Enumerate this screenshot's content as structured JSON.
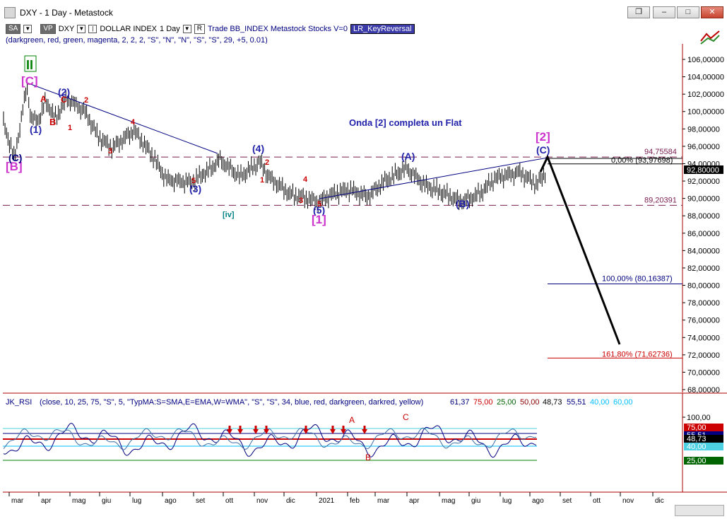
{
  "window": {
    "title": "DXY - 1 Day - Metastock"
  },
  "toolbar": {
    "sa": "SA",
    "vp": "VP",
    "symbol": "DXY",
    "name": "DOLLAR INDEX",
    "period": "1 Day",
    "r_btn": "R",
    "trade_text": "Trade  BB_INDEX  Metastock  Stocks  V=0",
    "expert": "LR_KeyReversal"
  },
  "params": "(darkgreen, red, green, magenta, 2, 2, 2, \"S\", \"N\", \"N\", \"S\", \"S\", 29, +5, 0.01)",
  "main_chart": {
    "y_ticks": [
      "106,00000",
      "104,00000",
      "102,00000",
      "100,00000",
      "98,00000",
      "96,00000",
      "94,00000",
      "92,00000",
      "90,00000",
      "88,00000",
      "86,00000",
      "84,00000",
      "82,00000",
      "80,00000",
      "78,00000",
      "76,00000",
      "74,00000",
      "72,00000",
      "70,00000",
      "68,00000"
    ],
    "current_price": "92,80000",
    "headline": "Onda [2] completa un Flat",
    "levels": [
      {
        "label": "94,75584",
        "value": 94.75584,
        "color": "#7a1d4f"
      },
      {
        "label": "0,00% (93,97698)",
        "value": 93.97698,
        "color": "#000000"
      },
      {
        "label": "89,20391",
        "value": 89.20391,
        "color": "#7a1d4f"
      },
      {
        "label": "100,00% (80,16387)",
        "value": 80.16387,
        "color": "#000080"
      },
      {
        "label": "161,80% (71,62736)",
        "value": 71.62736,
        "color": "#cc0000"
      }
    ]
  },
  "wave_labels": {
    "b_big": "[B]",
    "c_big": "[C]",
    "two_big": "[2]",
    "one_big": "[1]",
    "c_paren": "(C)",
    "one_paren": "(1)",
    "two_paren": "(2)",
    "three_paren": "(3)",
    "four_paren": "(4)",
    "five_paren": "(5)",
    "a_paren": "(A)",
    "b_paren": "(B)",
    "c_paren2": "(C)",
    "iv": "[iv]",
    "ii": "II",
    "A": "A",
    "B": "B",
    "C": "C",
    "n1": "1",
    "n2": "2",
    "n3": "3",
    "n4": "4",
    "n5": "5"
  },
  "rsi": {
    "header_name": "JK_RSI",
    "header_params": "(close, 10, 25, 75, \"S\", 5, \"TypMA:S=SMA,E=EMA,W=WMA\", \"S\", \"S\", 34, blue, red, darkgreen, darkred, yellow)",
    "v1": "61,37",
    "v2": "75,00",
    "v3": "25,00",
    "v4": "50,00",
    "v5": "48,73",
    "v6": "55,51",
    "v7": "40,00",
    "v8": "60,00",
    "y_ticks": [
      "100,00",
      "75,00",
      "55,51",
      "48,73",
      "40,00",
      "25,00"
    ],
    "label_A": "A",
    "label_B": "B",
    "label_C": "C"
  },
  "x_axis": [
    "mar",
    "apr",
    "mag",
    "giu",
    "lug",
    "ago",
    "set",
    "ott",
    "nov",
    "dic",
    "2021",
    "feb",
    "mar",
    "apr",
    "mag",
    "giu",
    "lug",
    "ago",
    "set",
    "ott",
    "nov",
    "dic"
  ]
}
